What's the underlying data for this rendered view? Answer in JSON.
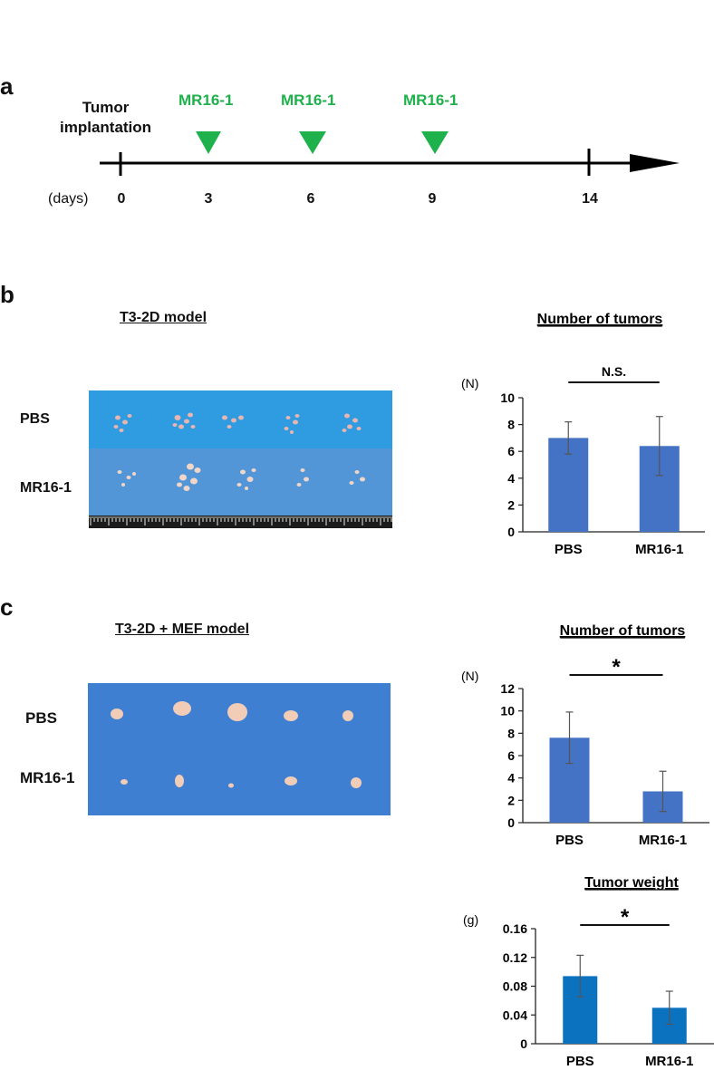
{
  "panels": {
    "a": "a",
    "b": "b",
    "c": "c"
  },
  "timeline": {
    "start_label": "Tumor\nimplantation",
    "unit_label": "(days)",
    "treatment_label": "MR16-1",
    "ticks": [
      "0",
      "3",
      "6",
      "9",
      "14"
    ],
    "treatment_days": [
      "3",
      "6",
      "9"
    ],
    "arrow_color": "#000000",
    "marker_color": "#1fb14c"
  },
  "panel_b": {
    "photo_title": "T3-2D model",
    "row_labels": [
      "PBS",
      "MR16-1"
    ]
  },
  "panel_c": {
    "photo_title": "T3-2D + MEF model",
    "row_labels": [
      "PBS",
      "MR16-1"
    ]
  },
  "chart_data": [
    {
      "type": "bar",
      "title": "Number of tumors",
      "ylabel": "(N)",
      "categories": [
        "PBS",
        "MR16-1"
      ],
      "values": [
        7.0,
        6.4
      ],
      "errors": [
        1.2,
        2.2
      ],
      "yticks": [
        "0",
        "2",
        "4",
        "6",
        "8",
        "10"
      ],
      "ylim": [
        0,
        10
      ],
      "significance": "N.S.",
      "bar_color": "#4472c4"
    },
    {
      "type": "bar",
      "title": "Number of tumors",
      "ylabel": "(N)",
      "categories": [
        "PBS",
        "MR16-1"
      ],
      "values": [
        7.6,
        2.8
      ],
      "errors": [
        2.3,
        1.8
      ],
      "yticks": [
        "0",
        "2",
        "4",
        "6",
        "8",
        "10",
        "12"
      ],
      "ylim": [
        0,
        12
      ],
      "significance": "*",
      "bar_color": "#4472c4"
    },
    {
      "type": "bar",
      "title": "Tumor weight",
      "ylabel": "(g)",
      "categories": [
        "PBS",
        "MR16-1"
      ],
      "values": [
        0.094,
        0.05
      ],
      "errors": [
        0.029,
        0.023
      ],
      "yticks": [
        "0",
        "0.04",
        "0.08",
        "0.12",
        "0.16"
      ],
      "ylim": [
        0,
        0.16
      ],
      "significance": "*",
      "bar_color": "#0b72c0"
    }
  ]
}
